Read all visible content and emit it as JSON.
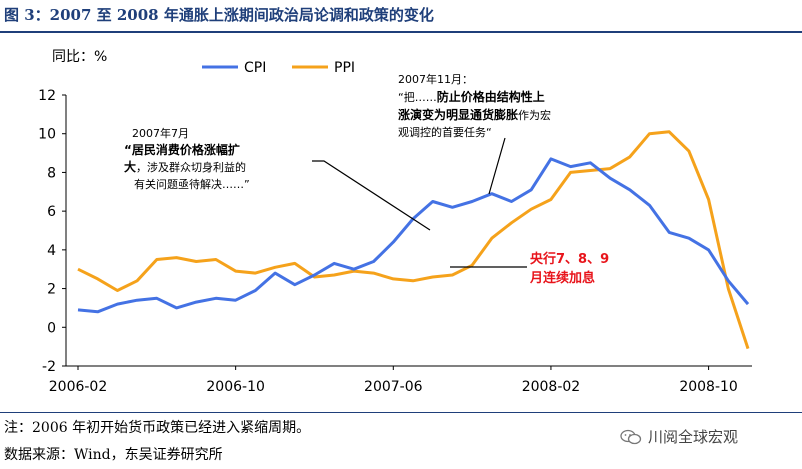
{
  "figure_title": "图 3：2007 至 2008 年通胀上涨期间政治局论调和政策的变化",
  "note": "注：2006 年初开始货币政策已经进入紧缩周期。",
  "source": "数据来源：Wind，东吴证券研究所",
  "watermark": "川阅全球宏观",
  "colors": {
    "cpi": "#4472e4",
    "ppi": "#f5a21b",
    "title": "#1f3f7a",
    "highlight": "#e8141b"
  },
  "annotations": {
    "jul2007": {
      "date": "2007年7月",
      "line1_bold": "“居民消费价格涨幅扩",
      "line2_bold": "大",
      "line2_normal": "，涉及群众切身利益的",
      "line3": "有关问题亟待解决……”"
    },
    "nov2007": {
      "date": "2007年11月：",
      "line1_normal": "“把……",
      "line1_bold": "防止价格由结构性上",
      "line2_bold": "涨演变为明显通货膨胀",
      "line2_normal": "作为宏",
      "line3": "观调控的首要任务“"
    },
    "rate_hike": {
      "line1": "央行7、8、9",
      "line2": "月连续加息"
    }
  },
  "chart_data": {
    "type": "line",
    "title": "",
    "ylabel": "同比：%",
    "xlabel": "",
    "ylim": [
      -2,
      12
    ],
    "yticks": [
      -2,
      0,
      2,
      4,
      6,
      8,
      10,
      12
    ],
    "x_tick_labels": [
      "2006-02",
      "2006-10",
      "2007-06",
      "2008-02",
      "2008-10"
    ],
    "x_tick_indices": [
      0,
      8,
      16,
      24,
      32
    ],
    "categories": [
      "2006-02",
      "2006-03",
      "2006-04",
      "2006-05",
      "2006-06",
      "2006-07",
      "2006-08",
      "2006-09",
      "2006-10",
      "2006-11",
      "2006-12",
      "2007-01",
      "2007-02",
      "2007-03",
      "2007-04",
      "2007-05",
      "2007-06",
      "2007-07",
      "2007-08",
      "2007-09",
      "2007-10",
      "2007-11",
      "2007-12",
      "2008-01",
      "2008-02",
      "2008-03",
      "2008-04",
      "2008-05",
      "2008-06",
      "2008-07",
      "2008-08",
      "2008-09",
      "2008-10",
      "2008-11",
      "2008-12"
    ],
    "legend": [
      "CPI",
      "PPI"
    ],
    "series": [
      {
        "name": "CPI",
        "values": [
          0.9,
          0.8,
          1.2,
          1.4,
          1.5,
          1.0,
          1.3,
          1.5,
          1.4,
          1.9,
          2.8,
          2.2,
          2.7,
          3.3,
          3.0,
          3.4,
          4.4,
          5.6,
          6.5,
          6.2,
          6.5,
          6.9,
          6.5,
          7.1,
          8.7,
          8.3,
          8.5,
          7.7,
          7.1,
          6.3,
          4.9,
          4.6,
          4.0,
          2.4,
          1.2
        ]
      },
      {
        "name": "PPI",
        "values": [
          3.0,
          2.5,
          1.9,
          2.4,
          3.5,
          3.6,
          3.4,
          3.5,
          2.9,
          2.8,
          3.1,
          3.3,
          2.6,
          2.7,
          2.9,
          2.8,
          2.5,
          2.4,
          2.6,
          2.7,
          3.2,
          4.6,
          5.4,
          6.1,
          6.6,
          8.0,
          8.1,
          8.2,
          8.8,
          10.0,
          10.1,
          9.1,
          6.6,
          2.0,
          -1.1
        ]
      }
    ]
  }
}
